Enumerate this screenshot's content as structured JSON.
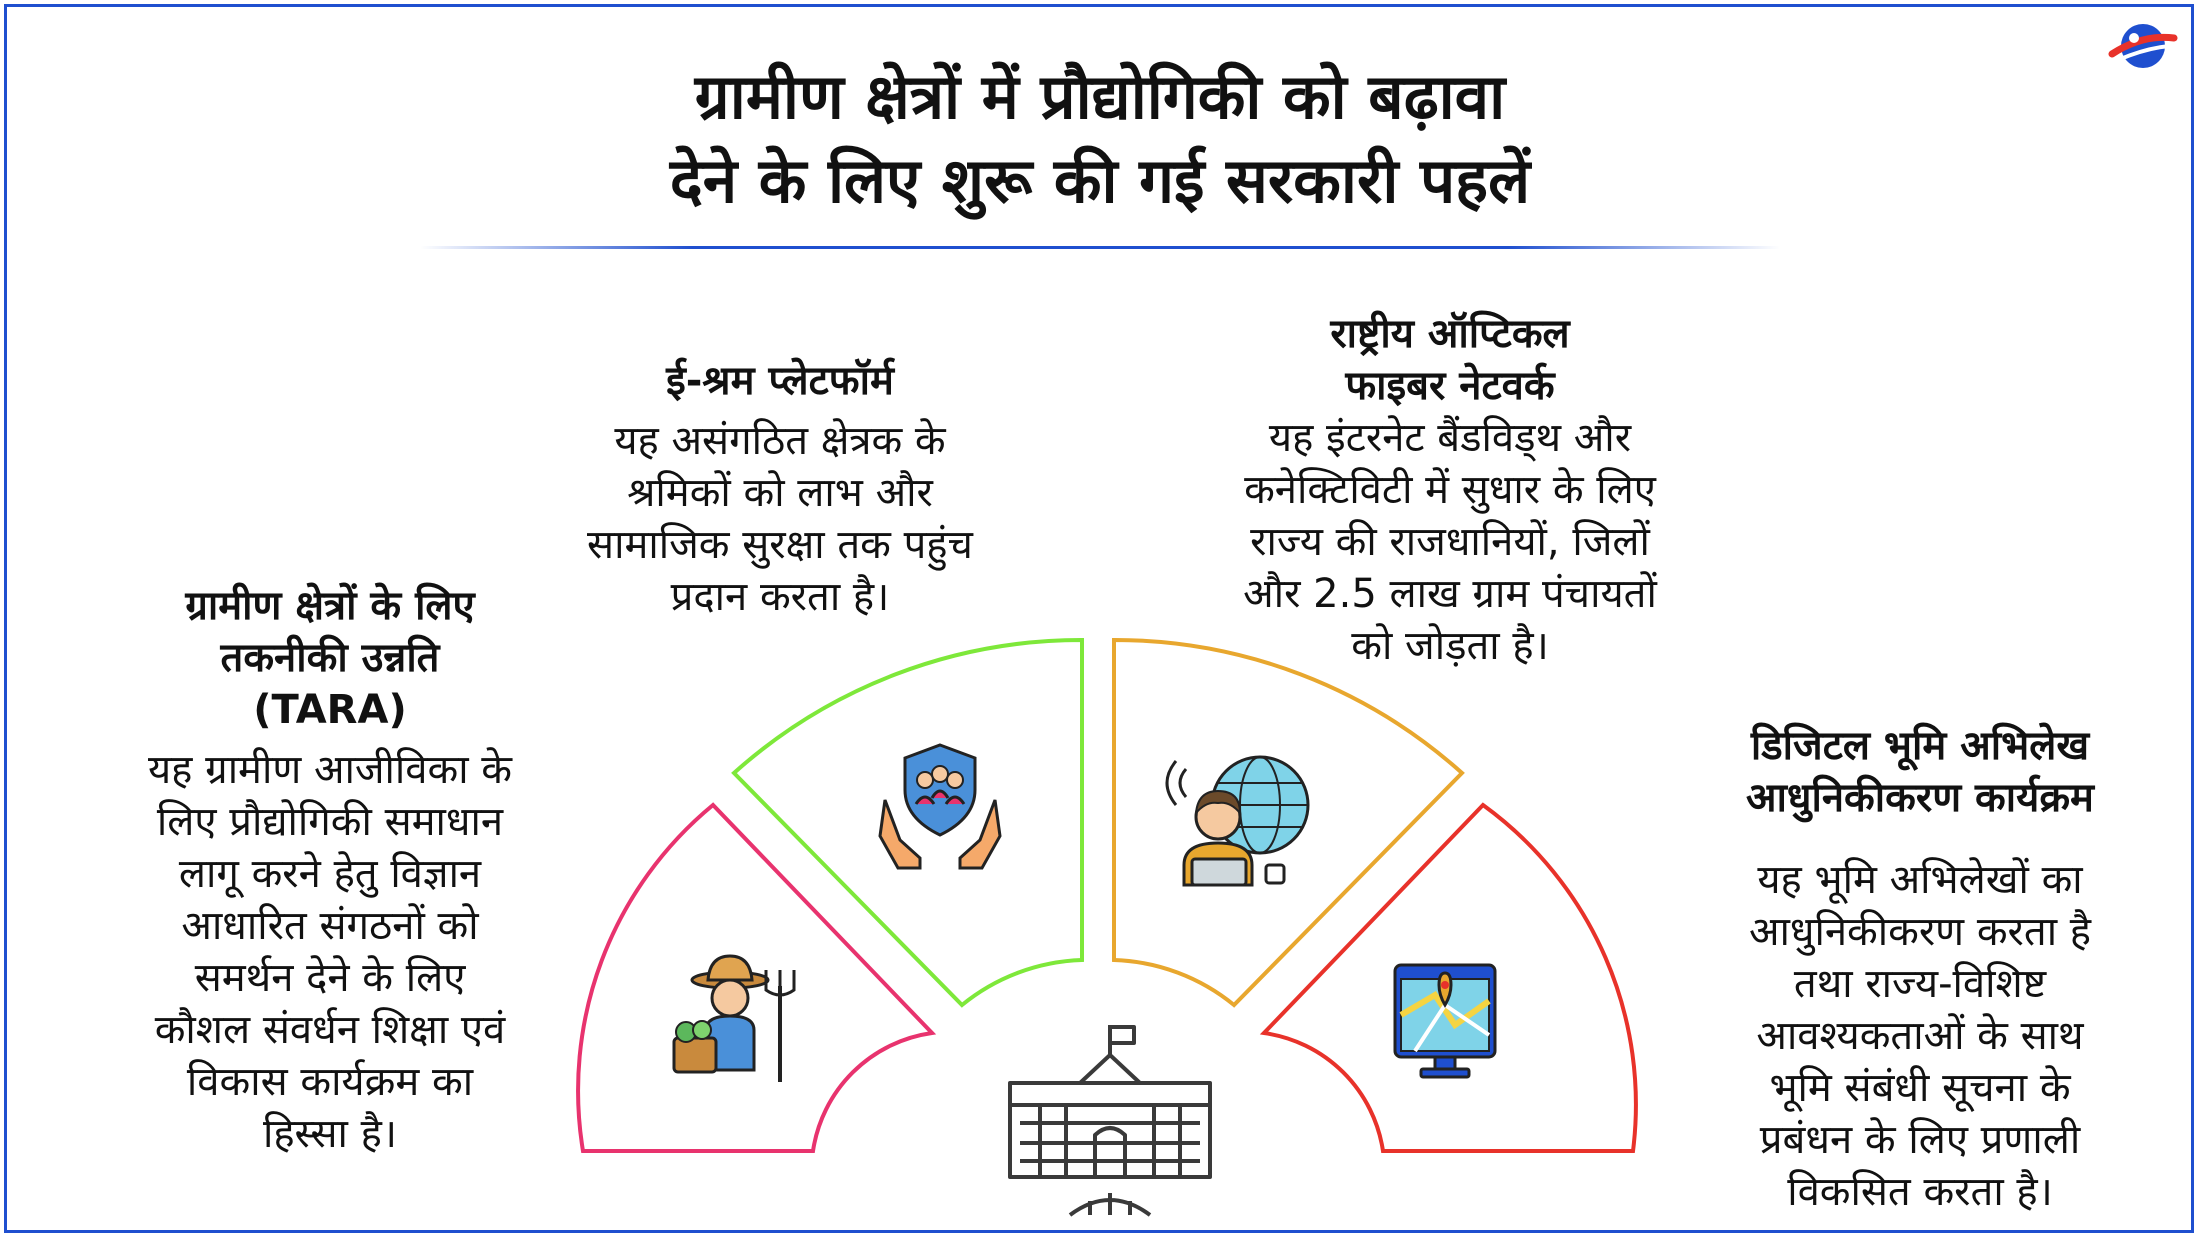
{
  "title": {
    "line1": "ग्रामीण क्षेत्रों में प्रौद्योगिकी को बढ़ावा",
    "line2": "देने के लिए शुरू की गई सरकारी पहलें"
  },
  "sections": [
    {
      "id": "tara",
      "heading_lines": [
        "ग्रामीण क्षेत्रों के लिए",
        "तकनीकी उन्नति",
        "(TARA)"
      ],
      "body_lines": [
        "यह ग्रामीण आजीविका के",
        "लिए प्रौद्योगिकी समाधान",
        "लागू करने हेतु विज्ञान",
        "आधारित संगठनों को",
        "समर्थन देने के लिए",
        "कौशल संवर्धन शिक्षा एवं",
        "विकास कार्यक्रम का",
        "हिस्सा है।"
      ],
      "color": "#e8336e",
      "icon": "farmer-icon"
    },
    {
      "id": "e-shram",
      "heading_lines": [
        "ई-श्रम प्लेटफॉर्म"
      ],
      "body_lines": [
        "यह असंगठित क्षेत्रक के",
        "श्रमिकों को लाभ और",
        "सामाजिक सुरक्षा तक पहुंच",
        "प्रदान करता है।"
      ],
      "color": "#7ee83a",
      "icon": "social-protection-icon"
    },
    {
      "id": "optical-fiber",
      "heading_lines": [
        "राष्ट्रीय ऑप्टिकल",
        "फाइबर नेटवर्क"
      ],
      "body_lines": [
        "यह इंटरनेट बैंडविड्थ और",
        "कनेक्टिविटी में सुधार के लिए",
        "राज्य की राजधानियों, जिलों",
        "और 2.5 लाख ग्राम पंचायतों",
        "को जोड़ता है।"
      ],
      "color": "#e8a72e",
      "icon": "internet-user-icon"
    },
    {
      "id": "land-records",
      "heading_lines": [
        "डिजिटल भूमि अभिलेख",
        "आधुनिकीकरण कार्यक्रम"
      ],
      "body_lines": [
        "यह भूमि अभिलेखों का",
        "आधुनिकीकरण करता है",
        "तथा राज्य-विशिष्ट",
        "आवश्यकताओं के साथ",
        "भूमि संबंधी सूचना के",
        "प्रबंधन के लिए प्रणाली",
        "विकसित करता है।"
      ],
      "color": "#e8322a",
      "icon": "digital-map-icon"
    }
  ],
  "center_icon": "government-building-icon"
}
